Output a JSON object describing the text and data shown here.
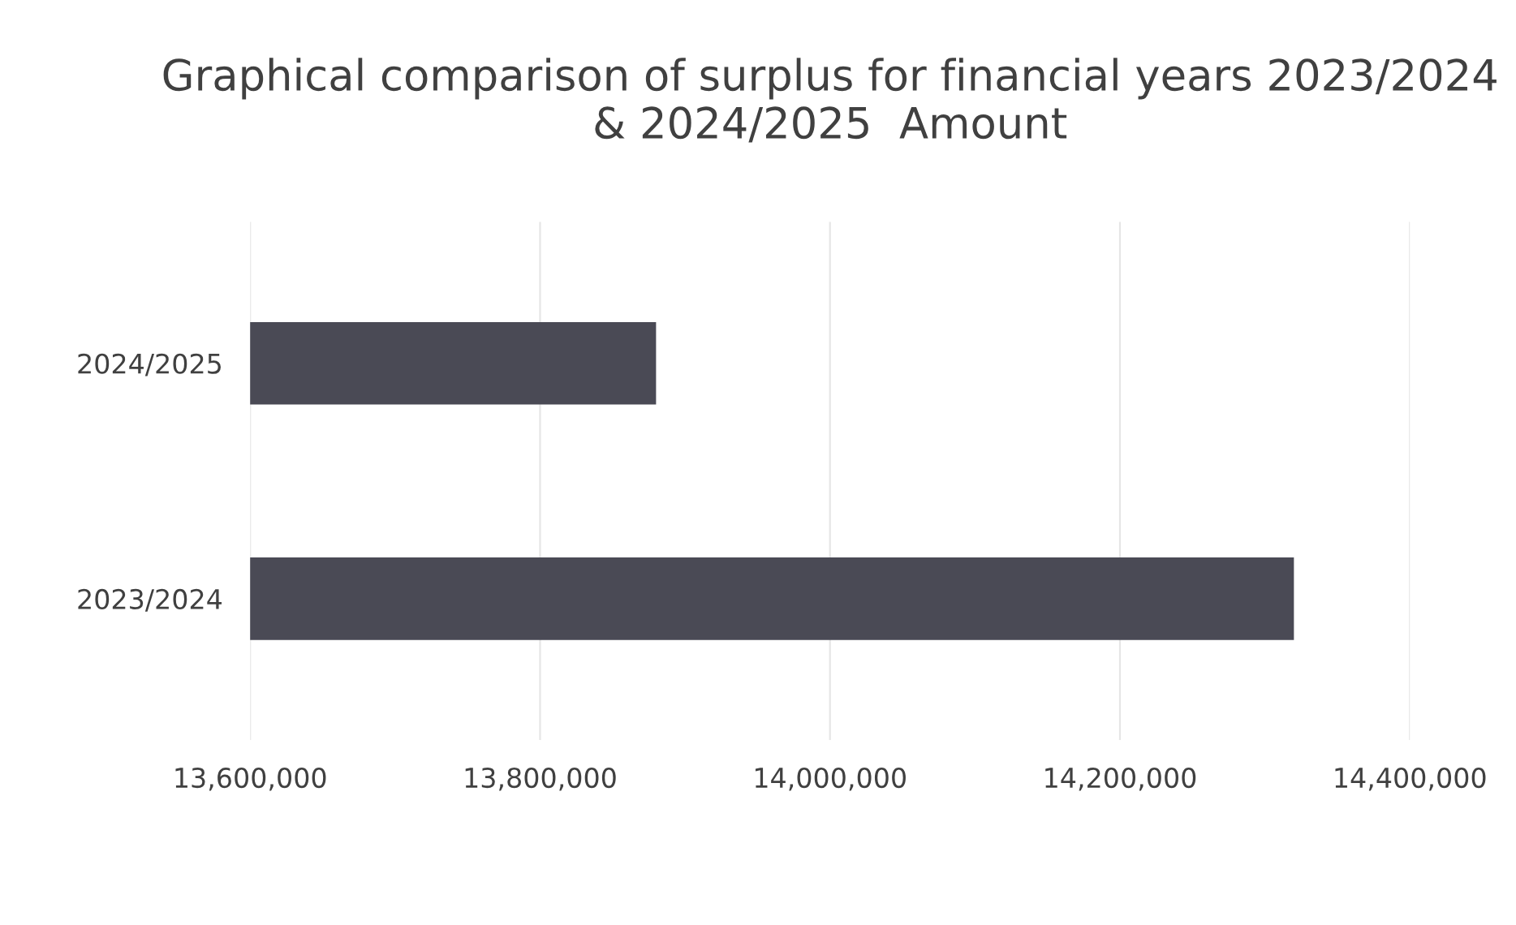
{
  "chart_data": {
    "type": "bar",
    "orientation": "horizontal",
    "title": "Graphical comparison of surplus for financial years 2023/2024 & 2024/2025  Amount",
    "categories": [
      "2024/2025",
      "2023/2024"
    ],
    "values": [
      13880000,
      14320000
    ],
    "color": "#4a4a55",
    "xlim": [
      13600000,
      14400000
    ],
    "xticks": [
      {
        "value": 13600000,
        "label": "13,600,000"
      },
      {
        "value": 13800000,
        "label": "13,800,000"
      },
      {
        "value": 14000000,
        "label": "14,000,000"
      },
      {
        "value": 14200000,
        "label": "14,200,000"
      },
      {
        "value": 14400000,
        "label": "14,400,000"
      }
    ],
    "grid": "x"
  }
}
